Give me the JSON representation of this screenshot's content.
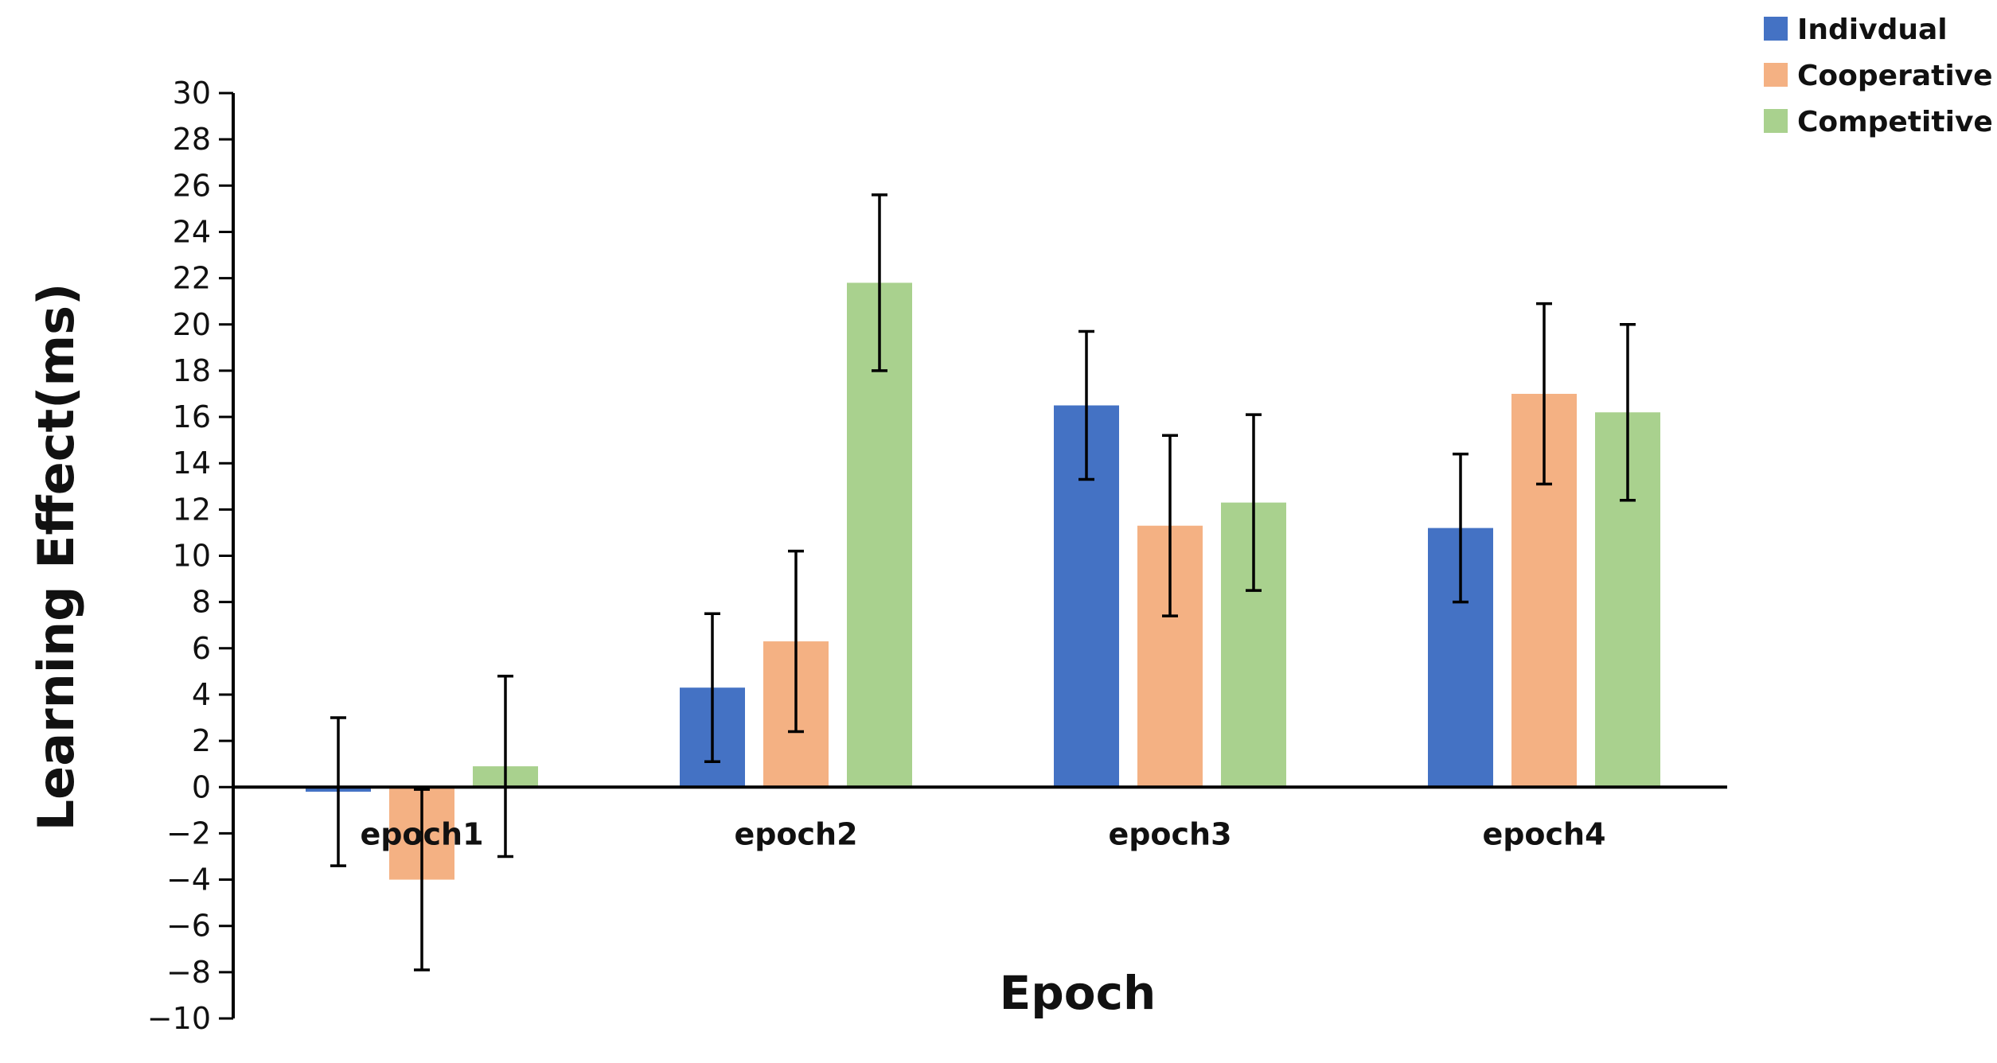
{
  "chart_data": {
    "type": "bar",
    "title": "",
    "xlabel": "Epoch",
    "ylabel": "Learning Effect(ms)",
    "ylim": [
      -10,
      30
    ],
    "ytick_step": 2,
    "yticks": [
      "−10",
      "−8",
      "−6",
      "−4",
      "−2",
      "0",
      "2",
      "4",
      "6",
      "8",
      "10",
      "12",
      "14",
      "16",
      "18",
      "20",
      "22",
      "24",
      "26",
      "28",
      "30"
    ],
    "categories": [
      "epoch1",
      "epoch2",
      "epoch3",
      "epoch4"
    ],
    "legend_position": "top-right",
    "grid": false,
    "error_bars": true,
    "series": [
      {
        "name": "Indivdual",
        "color": "#4472C4",
        "values": [
          -0.2,
          4.3,
          16.5,
          11.2
        ],
        "errors": [
          3.2,
          3.2,
          3.2,
          3.2
        ]
      },
      {
        "name": "Cooperative",
        "color": "#F4B183",
        "values": [
          -4.0,
          6.3,
          11.3,
          17.0
        ],
        "errors": [
          3.9,
          3.9,
          3.9,
          3.9
        ]
      },
      {
        "name": "Competitive",
        "color": "#A9D18E",
        "values": [
          0.9,
          21.8,
          12.3,
          16.2
        ],
        "errors": [
          3.9,
          3.8,
          3.8,
          3.8
        ]
      }
    ]
  }
}
